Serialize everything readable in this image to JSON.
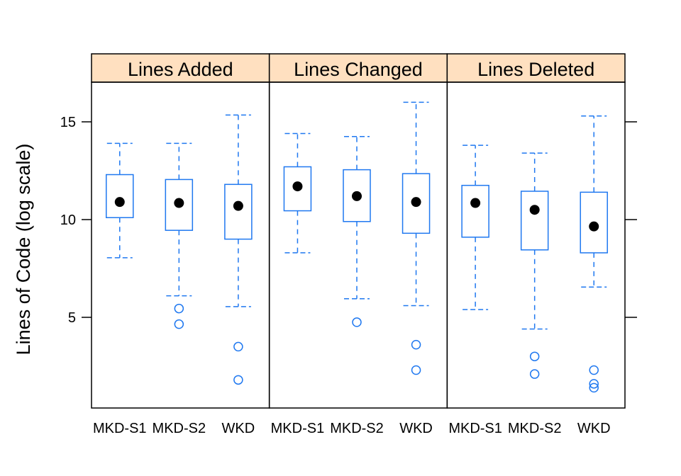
{
  "chart_data": {
    "type": "boxplot",
    "ylabel": "Lines of Code (log scale)",
    "ylim": [
      0.3,
      17
    ],
    "yticks": [
      5,
      10,
      15
    ],
    "categories": [
      "MKD-S1",
      "MKD-S2",
      "WKD"
    ],
    "colors": {
      "box": "#1f78f0",
      "median": "#000000",
      "strip": "#ffe0c0",
      "frame": "#000000"
    },
    "panels": [
      {
        "title": "Lines Added",
        "boxes": [
          {
            "category": "MKD-S1",
            "whisker_low": 8.05,
            "q1": 10.1,
            "median": 10.9,
            "q3": 12.3,
            "whisker_high": 13.9,
            "outliers": []
          },
          {
            "category": "MKD-S2",
            "whisker_low": 6.1,
            "q1": 9.45,
            "median": 10.85,
            "q3": 12.05,
            "whisker_high": 13.9,
            "outliers": [
              5.45,
              4.65
            ]
          },
          {
            "category": "WKD",
            "whisker_low": 5.55,
            "q1": 9.0,
            "median": 10.7,
            "q3": 11.8,
            "whisker_high": 15.35,
            "outliers": [
              3.5,
              1.8
            ]
          }
        ]
      },
      {
        "title": "Lines Changed",
        "boxes": [
          {
            "category": "MKD-S1",
            "whisker_low": 8.3,
            "q1": 10.45,
            "median": 11.7,
            "q3": 12.7,
            "whisker_high": 14.4,
            "outliers": []
          },
          {
            "category": "MKD-S2",
            "whisker_low": 5.95,
            "q1": 9.9,
            "median": 11.2,
            "q3": 12.55,
            "whisker_high": 14.25,
            "outliers": [
              4.75
            ]
          },
          {
            "category": "WKD",
            "whisker_low": 5.6,
            "q1": 9.3,
            "median": 10.9,
            "q3": 12.35,
            "whisker_high": 16.0,
            "outliers": [
              3.6,
              2.3
            ]
          }
        ]
      },
      {
        "title": "Lines Deleted",
        "boxes": [
          {
            "category": "MKD-S1",
            "whisker_low": 5.4,
            "q1": 9.1,
            "median": 10.85,
            "q3": 11.75,
            "whisker_high": 13.8,
            "outliers": []
          },
          {
            "category": "MKD-S2",
            "whisker_low": 4.4,
            "q1": 8.45,
            "median": 10.5,
            "q3": 11.45,
            "whisker_high": 13.4,
            "outliers": [
              3.0,
              2.1
            ]
          },
          {
            "category": "WKD",
            "whisker_low": 6.55,
            "q1": 8.3,
            "median": 9.65,
            "q3": 11.4,
            "whisker_high": 15.3,
            "outliers": [
              2.3,
              1.6,
              1.4
            ]
          }
        ]
      }
    ]
  }
}
